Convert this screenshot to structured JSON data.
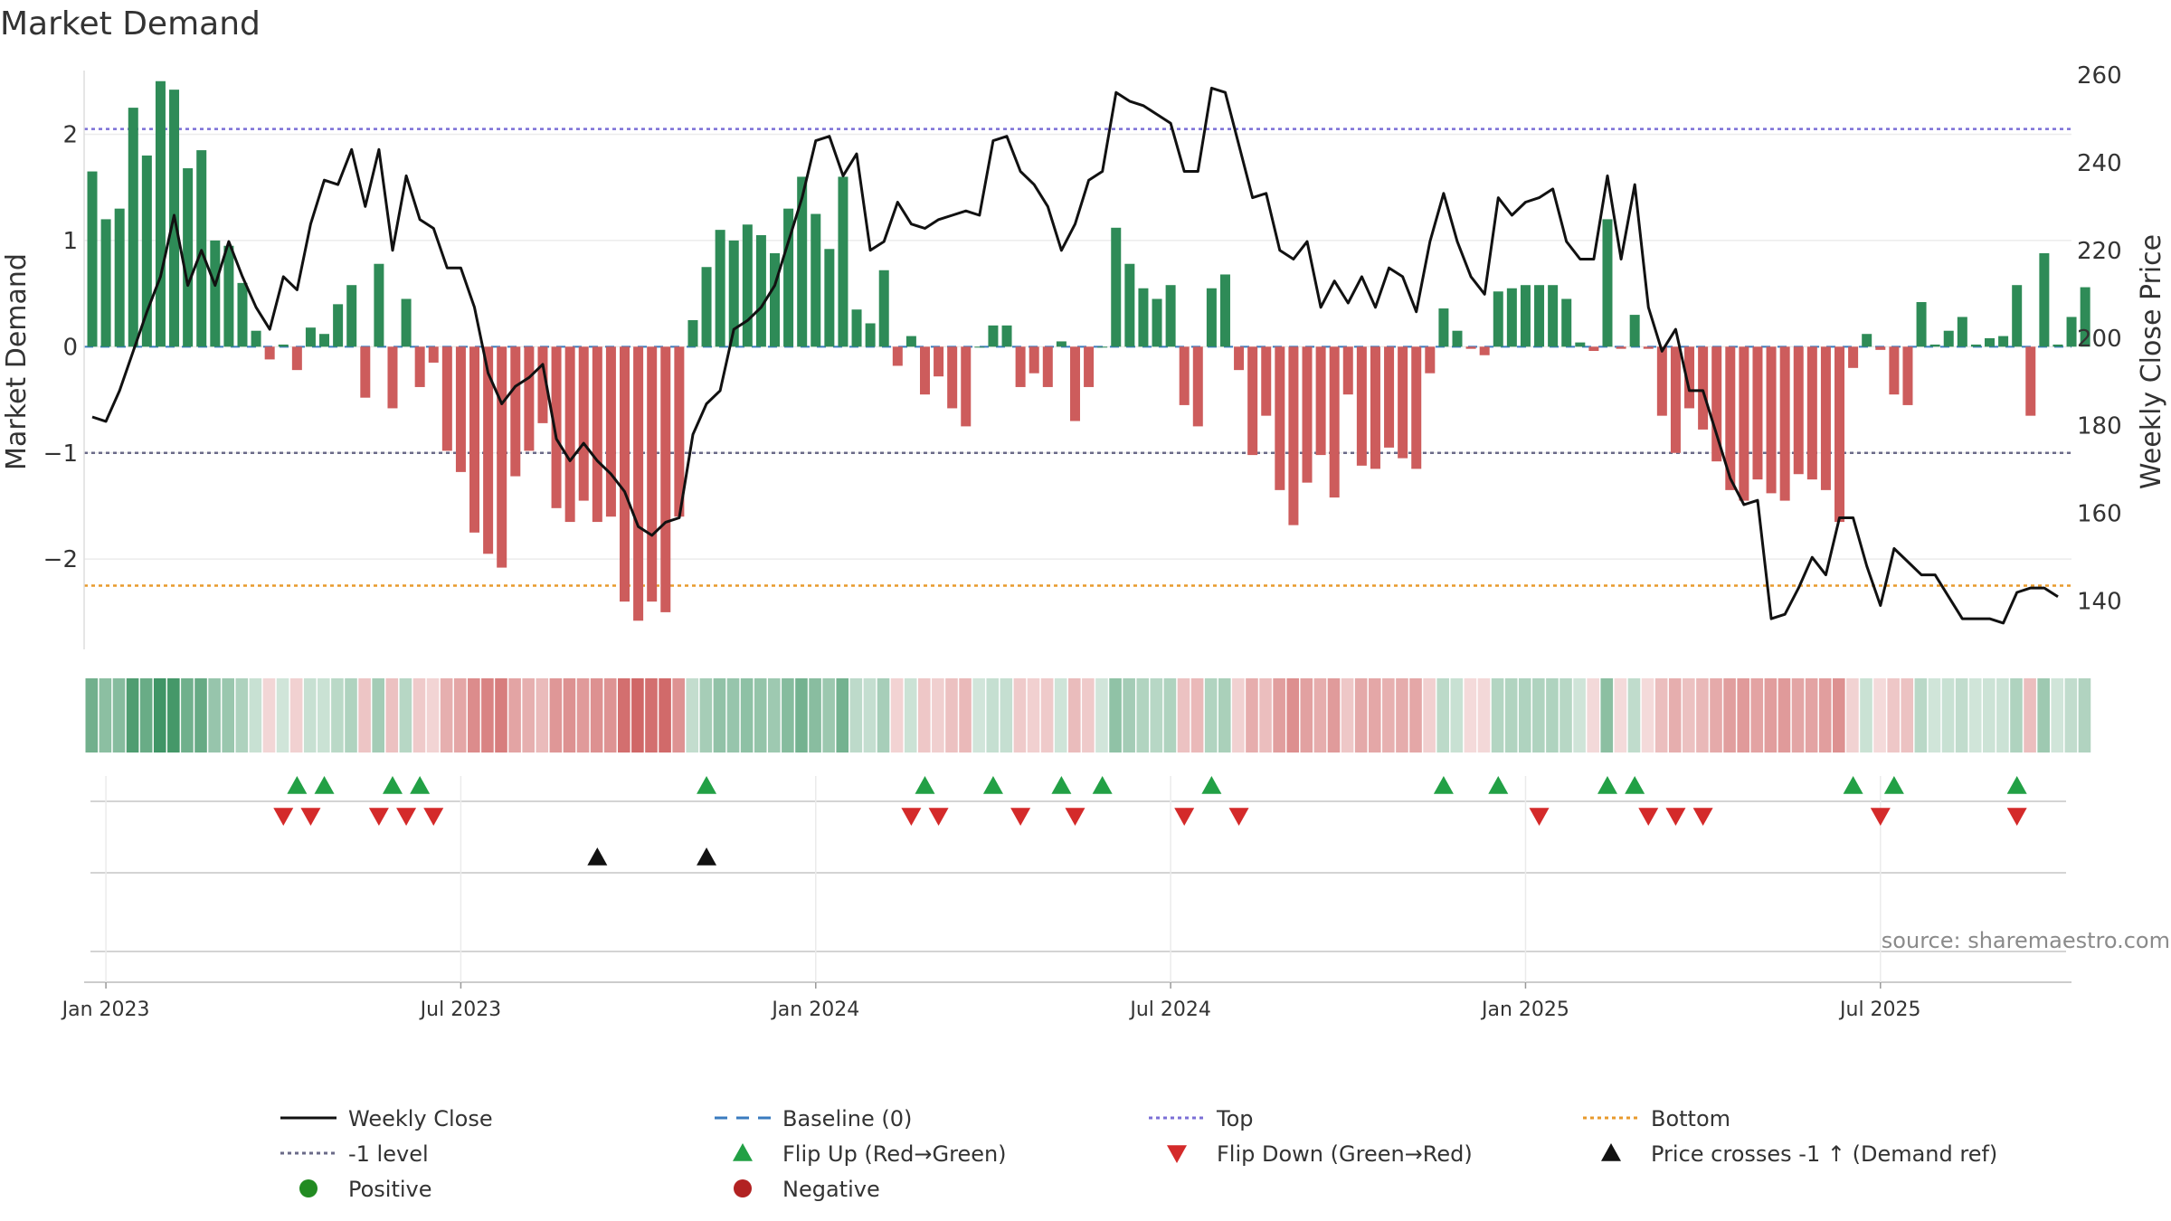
{
  "chart_data": {
    "type": "bar",
    "title": "Market Demand",
    "ylabel_left": "Market Demand",
    "ylabel_right": "Weekly Close Price",
    "left_axis": {
      "range": [
        -2.85,
        2.6
      ],
      "ticks": [
        -2,
        -1,
        0,
        1,
        2
      ],
      "tick_labels": [
        "−2",
        "−1",
        "0",
        "1",
        "2"
      ]
    },
    "right_axis": {
      "range": [
        129,
        261
      ],
      "ticks": [
        140,
        160,
        180,
        200,
        220,
        240,
        260
      ],
      "tick_labels": [
        "140",
        "160",
        "180",
        "200",
        "220",
        "240",
        "260"
      ]
    },
    "date_ticks": [
      {
        "week": 1,
        "label": "Jan 2023"
      },
      {
        "week": 27,
        "label": "Jul 2023"
      },
      {
        "week": 53,
        "label": "Jan 2024"
      },
      {
        "week": 79,
        "label": "Jul 2024"
      },
      {
        "week": 105,
        "label": "Jan 2025"
      },
      {
        "week": 131,
        "label": "Jul 2025"
      }
    ],
    "reference_lines": {
      "top": {
        "value": 2.05,
        "color": "#7b6fd6"
      },
      "level_minus_1": {
        "value": -1.0,
        "color": "#6a6a88"
      },
      "bottom": {
        "value": -2.25,
        "color": "#e89a2c"
      },
      "baseline": {
        "value": 0,
        "color": "#3a7bbf"
      }
    },
    "series": [
      {
        "name": "Market Demand",
        "kind": "bar",
        "values": [
          1.65,
          1.2,
          1.3,
          2.25,
          1.8,
          2.5,
          2.42,
          1.68,
          1.85,
          1.0,
          0.95,
          0.6,
          0.15,
          -0.12,
          0.02,
          -0.22,
          0.18,
          0.12,
          0.4,
          0.58,
          -0.48,
          0.78,
          -0.58,
          0.45,
          -0.38,
          -0.15,
          -0.98,
          -1.18,
          -1.75,
          -1.95,
          -2.08,
          -1.22,
          -0.98,
          -0.72,
          -1.52,
          -1.65,
          -1.45,
          -1.65,
          -1.6,
          -2.4,
          -2.58,
          -2.4,
          -2.5,
          -1.6,
          0.25,
          0.75,
          1.1,
          1.0,
          1.15,
          1.05,
          0.88,
          1.3,
          1.6,
          1.25,
          0.92,
          1.6,
          0.35,
          0.22,
          0.72,
          -0.18,
          0.1,
          -0.45,
          -0.28,
          -0.58,
          -0.75,
          0.0,
          0.2,
          0.2,
          -0.38,
          -0.25,
          -0.38,
          0.05,
          -0.7,
          -0.38,
          0.0,
          1.12,
          0.78,
          0.55,
          0.45,
          0.58,
          -0.55,
          -0.75,
          0.55,
          0.68,
          -0.22,
          -1.02,
          -0.65,
          -1.35,
          -1.68,
          -1.28,
          -1.02,
          -1.42,
          -0.45,
          -1.12,
          -1.15,
          -0.95,
          -1.05,
          -1.15,
          -0.25,
          0.36,
          0.15,
          -0.02,
          -0.08,
          0.52,
          0.55,
          0.58,
          0.58,
          0.58,
          0.45,
          0.04,
          -0.04,
          1.2,
          -0.02,
          0.3,
          -0.02,
          -0.65,
          -1.0,
          -0.58,
          -0.78,
          -1.08,
          -1.35,
          -1.45,
          -1.25,
          -1.38,
          -1.45,
          -1.2,
          -1.25,
          -1.35,
          -1.65,
          -0.2,
          0.12,
          -0.03,
          -0.45,
          -0.55,
          0.42,
          0.02,
          0.15,
          0.28,
          0.02,
          0.08,
          0.1,
          0.58,
          -0.65,
          0.88,
          0.02,
          0.28,
          0.56
        ],
        "positive_color": "#2e8b57",
        "negative_color": "#cd5c5c"
      },
      {
        "name": "Weekly Close",
        "kind": "line",
        "axis": "right",
        "color": "#111111",
        "values": [
          182,
          181,
          188,
          197,
          206,
          214,
          228,
          212,
          220,
          212,
          222,
          214,
          207,
          202,
          214,
          211,
          226,
          236,
          235,
          243,
          230,
          243,
          220,
          237,
          227,
          225,
          216,
          216,
          207,
          192,
          185,
          189,
          191,
          194,
          177,
          172,
          176,
          172,
          169,
          165,
          157,
          155,
          158,
          159,
          178,
          185,
          188,
          202,
          204,
          207,
          212,
          222,
          232,
          245,
          246,
          237,
          242,
          220,
          222,
          231,
          226,
          225,
          227,
          228,
          229,
          228,
          245,
          246,
          238,
          235,
          230,
          220,
          226,
          236,
          238,
          256,
          254,
          253,
          251,
          249,
          238,
          238,
          257,
          256,
          244,
          232,
          233,
          220,
          218,
          222,
          207,
          213,
          208,
          214,
          207,
          216,
          214,
          206,
          222,
          233,
          222,
          214,
          210,
          232,
          228,
          231,
          232,
          234,
          222,
          218,
          218,
          237,
          218,
          235,
          207,
          197,
          202,
          188,
          188,
          178,
          168,
          162,
          163,
          136,
          137,
          143,
          150,
          146,
          159,
          159,
          148,
          139,
          152,
          149,
          146,
          146,
          141,
          136,
          136,
          136,
          135,
          142,
          143,
          143,
          141
        ]
      }
    ],
    "state_strip": {
      "description": "per-week demand state colour strip",
      "green_color": "#2e8b57",
      "red_color": "#cd5c5c"
    },
    "flip_up_weeks": [
      15,
      17,
      22,
      24,
      45,
      61,
      66,
      71,
      74,
      82,
      99,
      103,
      111,
      113,
      129,
      132,
      141
    ],
    "flip_down_weeks": [
      14,
      16,
      21,
      23,
      25,
      60,
      62,
      68,
      72,
      80,
      84,
      106,
      114,
      116,
      118,
      131,
      141
    ],
    "price_cross_weeks": [
      37,
      45
    ],
    "legend": [
      {
        "label": "Weekly Close",
        "symbol": "solid-line",
        "color": "#111111"
      },
      {
        "label": "Baseline (0)",
        "symbol": "dash-line",
        "color": "#3a7bbf"
      },
      {
        "label": "Top",
        "symbol": "dot-line",
        "color": "#7b6fd6"
      },
      {
        "label": "Bottom",
        "symbol": "dot-line",
        "color": "#e89a2c"
      },
      {
        "label": "-1 level",
        "symbol": "dot-line",
        "color": "#6a6a88"
      },
      {
        "label": "Flip Up (Red→Green)",
        "symbol": "triangle-up",
        "color": "#22a045"
      },
      {
        "label": "Flip Down (Green→Red)",
        "symbol": "triangle-down",
        "color": "#d42a2a"
      },
      {
        "label": "Price crosses -1 ↑ (Demand ref)",
        "symbol": "triangle-up",
        "color": "#111111"
      },
      {
        "label": "Positive",
        "symbol": "circle",
        "color": "#228b22"
      },
      {
        "label": "Negative",
        "symbol": "circle",
        "color": "#b22222"
      }
    ],
    "source": "source: sharemaestro.com"
  }
}
